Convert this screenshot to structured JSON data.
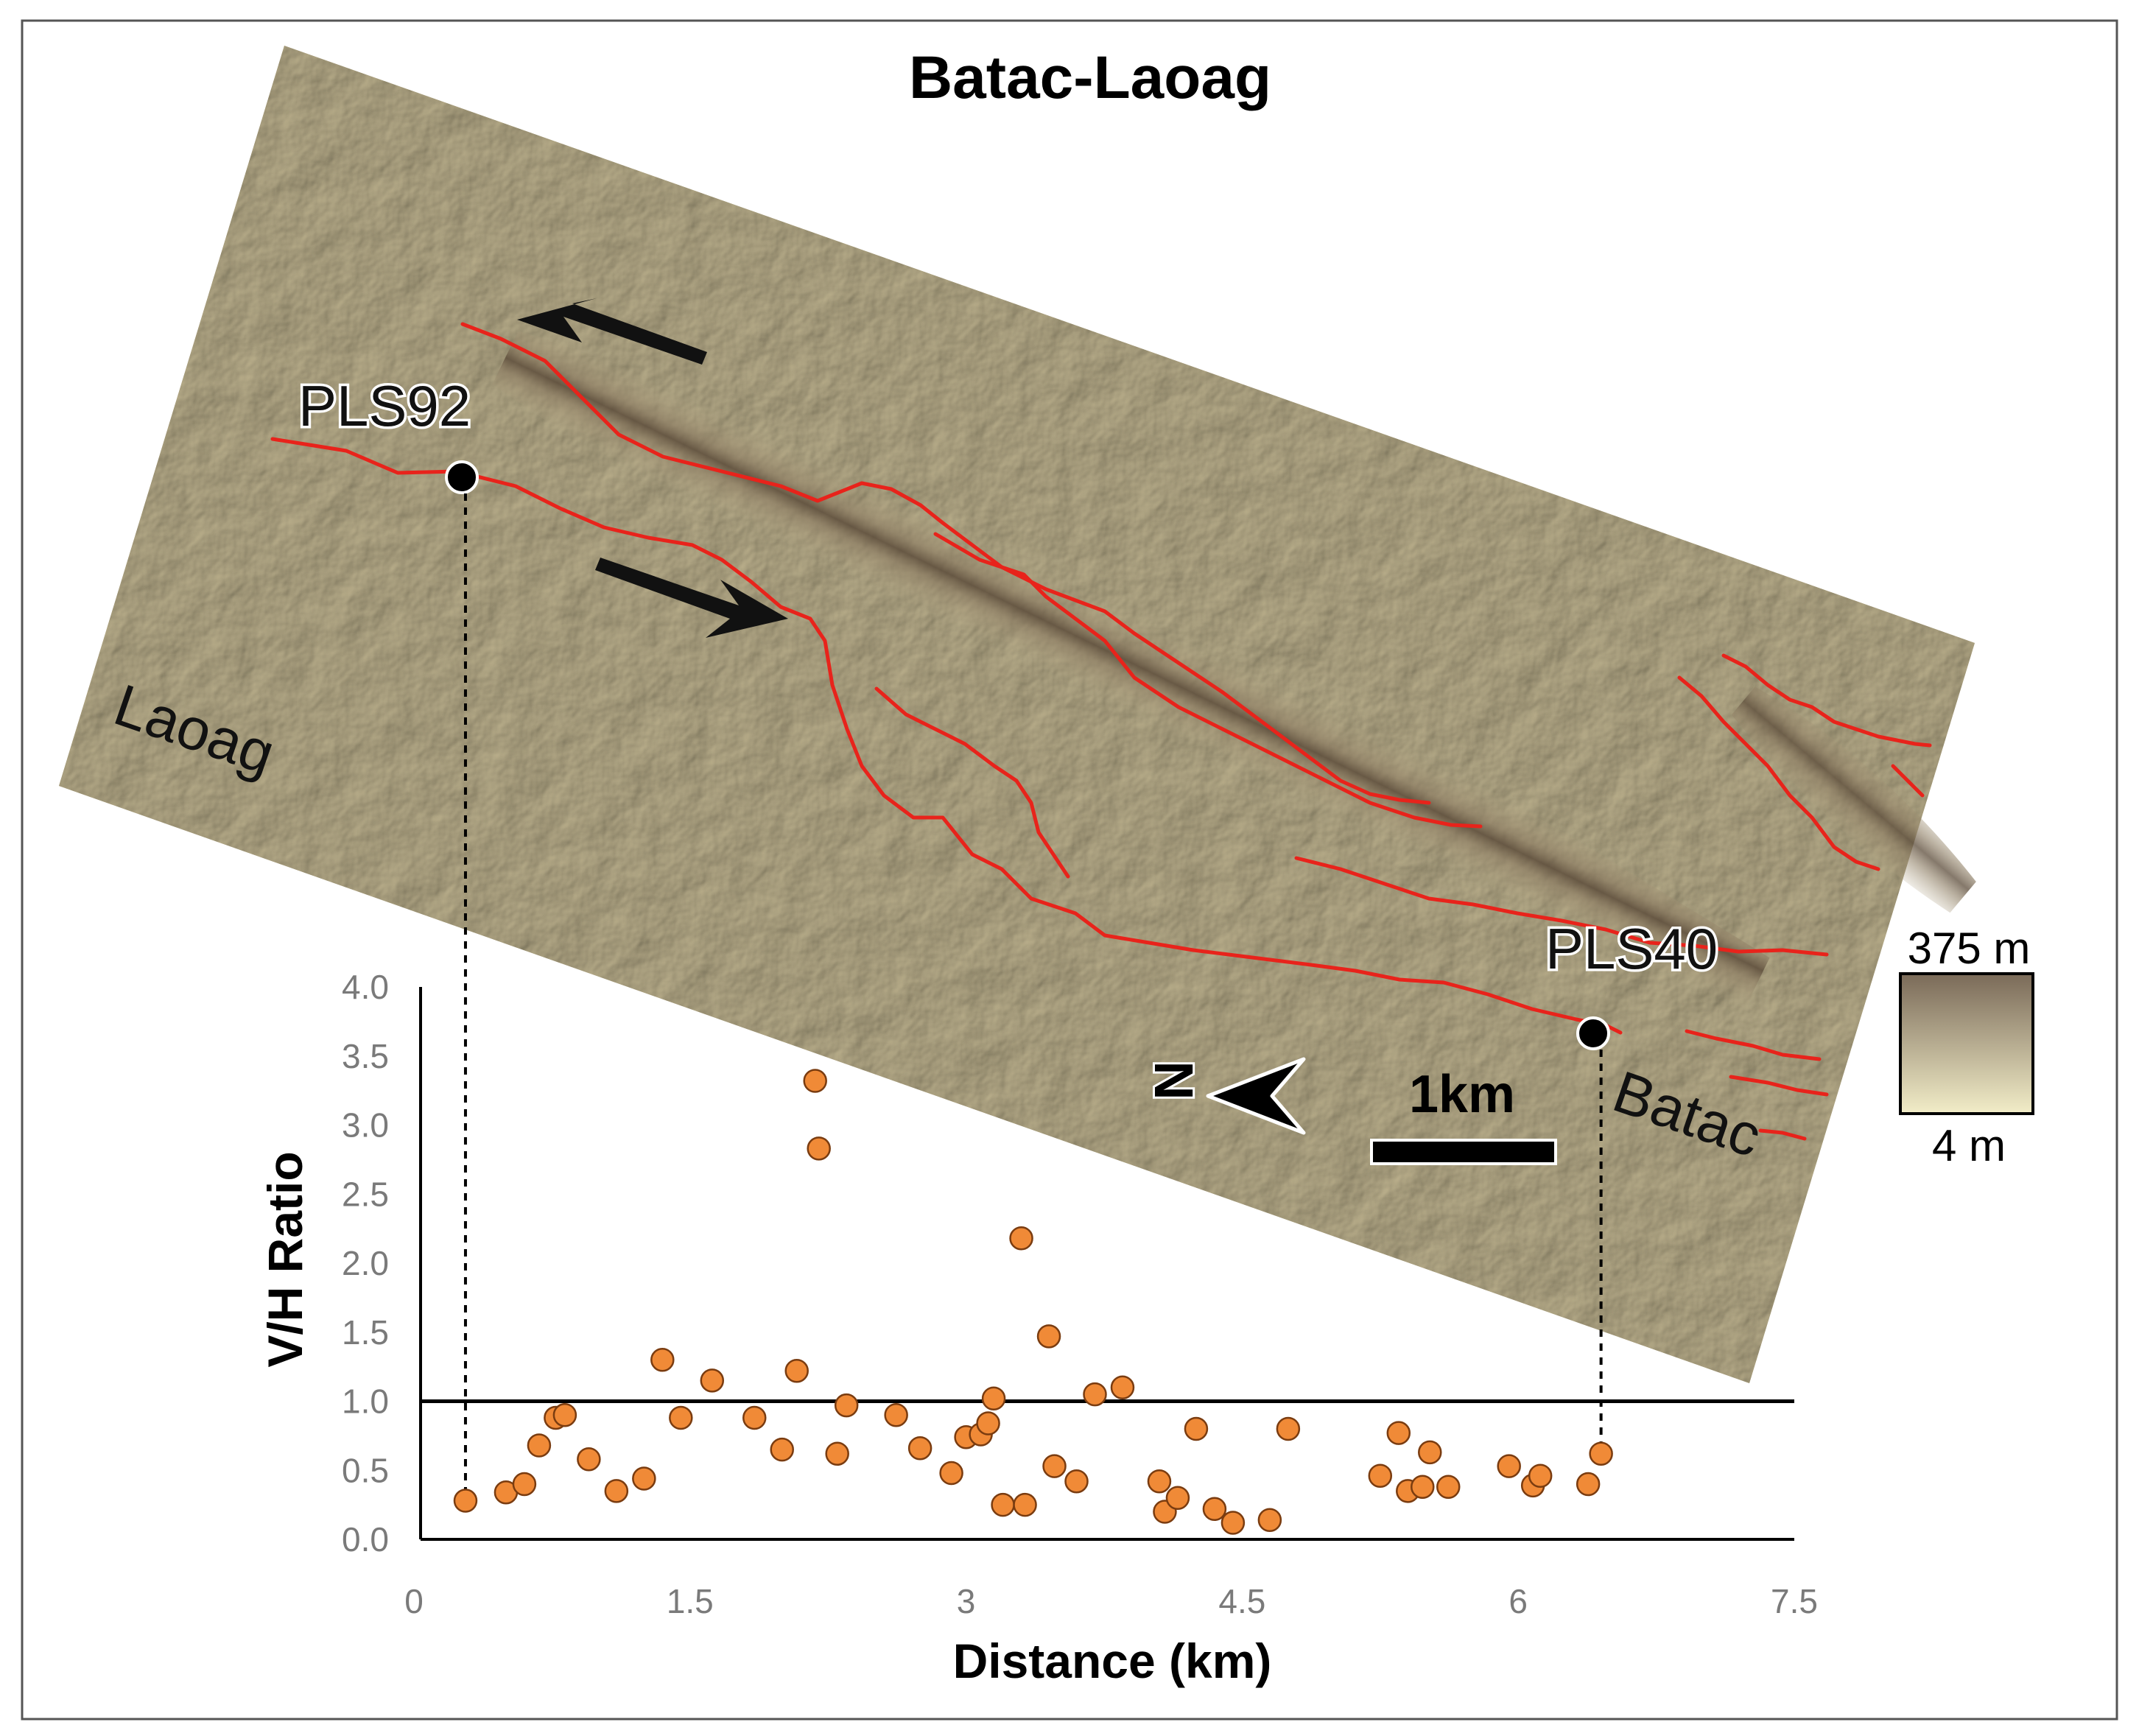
{
  "title": "Batac-Laoag",
  "map": {
    "place_labels": [
      "Laoag",
      "Batac"
    ],
    "station_labels": [
      "PLS92",
      "PLS40"
    ],
    "north_label": "N",
    "scale_label": "1km",
    "elevation_legend": {
      "max_label": "375 m",
      "min_label": "4 m",
      "low_color": "#f2edc8",
      "high_color": "#7a6a58"
    },
    "fault_color": "#e8231b"
  },
  "chart_data": {
    "type": "scatter",
    "xlabel": "Distance (km)",
    "ylabel": "V/H Ratio",
    "xlim": [
      0,
      7.5
    ],
    "ylim": [
      0,
      4.0
    ],
    "x_ticks": [
      "0",
      "1.5",
      "3",
      "4.5",
      "6",
      "7.5"
    ],
    "y_ticks": [
      "0.0",
      "0.5",
      "1.0",
      "1.5",
      "2.0",
      "2.5",
      "3.0",
      "3.5",
      "4.0"
    ],
    "reference_line_y": 1.0,
    "station_markers": [
      {
        "label": "PLS92",
        "x": 0.28,
        "y": 0.28
      },
      {
        "label": "PLS40",
        "x": 6.45,
        "y": 0.62
      }
    ],
    "marker_color": "#f08a37",
    "series": [
      {
        "x": [
          0.28,
          0.5,
          0.6,
          0.68,
          0.77,
          0.82,
          0.95,
          1.1,
          1.25,
          1.35,
          1.45,
          1.62,
          1.85,
          2.0,
          2.08,
          2.18,
          2.2,
          2.3,
          2.35,
          2.62,
          2.75,
          2.92,
          3.0,
          3.08,
          3.12,
          3.15,
          3.2,
          3.3,
          3.32,
          3.45,
          3.48,
          3.6,
          3.7,
          3.85,
          4.05,
          4.08,
          4.15,
          4.25,
          4.35,
          4.45,
          4.65,
          4.75,
          5.25,
          5.35,
          5.4,
          5.48,
          5.52,
          5.62,
          5.95,
          6.08,
          6.12,
          6.38,
          6.45
        ],
        "y": [
          0.28,
          0.34,
          0.4,
          0.68,
          0.88,
          0.9,
          0.58,
          0.35,
          0.44,
          1.3,
          0.88,
          1.15,
          0.88,
          0.65,
          1.22,
          3.32,
          2.83,
          0.62,
          0.97,
          0.9,
          0.66,
          0.48,
          0.74,
          0.76,
          0.84,
          1.02,
          0.25,
          2.18,
          0.25,
          1.47,
          0.53,
          0.42,
          1.05,
          1.1,
          0.42,
          0.2,
          0.3,
          0.8,
          0.22,
          0.12,
          0.14,
          0.8,
          0.46,
          0.77,
          0.35,
          0.38,
          0.63,
          0.38,
          0.53,
          0.39,
          0.46,
          0.4,
          0.62
        ]
      }
    ]
  }
}
